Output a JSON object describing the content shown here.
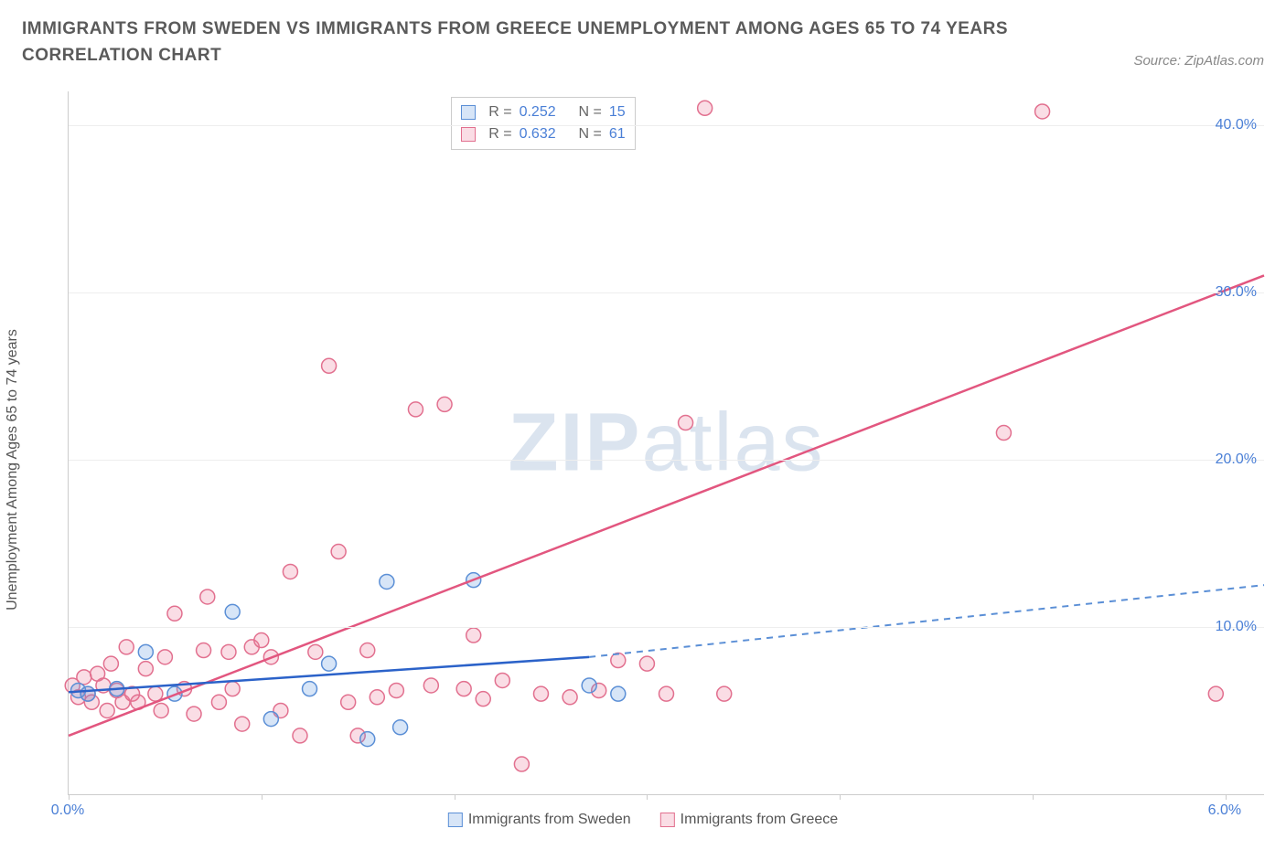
{
  "header": {
    "title": "IMMIGRANTS FROM SWEDEN VS IMMIGRANTS FROM GREECE UNEMPLOYMENT AMONG AGES 65 TO 74 YEARS CORRELATION CHART",
    "source": "Source: ZipAtlas.com"
  },
  "chart": {
    "type": "scatter",
    "ylabel": "Unemployment Among Ages 65 to 74 years",
    "watermark": "ZIPatlas",
    "background_color": "#ffffff",
    "grid_color": "#eeeeee",
    "axis_color": "#cccccc",
    "tick_label_color": "#4a7fd6",
    "ylabel_color": "#555555",
    "xlim": [
      0,
      6.2
    ],
    "ylim": [
      0,
      42
    ],
    "yticks": [
      10,
      20,
      30,
      40
    ],
    "ytick_labels": [
      "10.0%",
      "20.0%",
      "30.0%",
      "40.0%"
    ],
    "xticks_minor": [
      0,
      1,
      2,
      3,
      4,
      5,
      6
    ],
    "xtick_labels": {
      "0": "0.0%",
      "6": "6.0%"
    },
    "marker_radius": 8,
    "marker_stroke_width": 1.5,
    "series": {
      "sweden": {
        "label": "Immigrants from Sweden",
        "color_fill": "rgba(96,150,222,0.25)",
        "color_stroke": "#5b8fd6",
        "points": [
          [
            0.05,
            6.2
          ],
          [
            0.1,
            6.0
          ],
          [
            0.25,
            6.3
          ],
          [
            0.4,
            8.5
          ],
          [
            0.55,
            6.0
          ],
          [
            0.85,
            10.9
          ],
          [
            1.05,
            4.5
          ],
          [
            1.25,
            6.3
          ],
          [
            1.35,
            7.8
          ],
          [
            1.55,
            3.3
          ],
          [
            1.65,
            12.7
          ],
          [
            1.72,
            4.0
          ],
          [
            2.1,
            12.8
          ],
          [
            2.7,
            6.5
          ],
          [
            2.85,
            6.0
          ]
        ],
        "trend": {
          "x1": 0.0,
          "y1": 6.1,
          "x2": 2.7,
          "y2": 8.2,
          "x_extrap": 6.2,
          "y_extrap": 12.5,
          "color": "#2b62c9",
          "dash_color": "#5b8fd6",
          "width": 2.5
        }
      },
      "greece": {
        "label": "Immigrants from Greece",
        "color_fill": "rgba(235,120,150,0.25)",
        "color_stroke": "#e2708f",
        "points": [
          [
            0.02,
            6.5
          ],
          [
            0.05,
            5.8
          ],
          [
            0.08,
            7.0
          ],
          [
            0.1,
            6.0
          ],
          [
            0.12,
            5.5
          ],
          [
            0.15,
            7.2
          ],
          [
            0.18,
            6.5
          ],
          [
            0.2,
            5.0
          ],
          [
            0.22,
            7.8
          ],
          [
            0.25,
            6.2
          ],
          [
            0.28,
            5.5
          ],
          [
            0.3,
            8.8
          ],
          [
            0.33,
            6.0
          ],
          [
            0.36,
            5.5
          ],
          [
            0.4,
            7.5
          ],
          [
            0.45,
            6.0
          ],
          [
            0.48,
            5.0
          ],
          [
            0.5,
            8.2
          ],
          [
            0.55,
            10.8
          ],
          [
            0.6,
            6.3
          ],
          [
            0.65,
            4.8
          ],
          [
            0.7,
            8.6
          ],
          [
            0.72,
            11.8
          ],
          [
            0.78,
            5.5
          ],
          [
            0.83,
            8.5
          ],
          [
            0.85,
            6.3
          ],
          [
            0.9,
            4.2
          ],
          [
            0.95,
            8.8
          ],
          [
            1.0,
            9.2
          ],
          [
            1.05,
            8.2
          ],
          [
            1.1,
            5.0
          ],
          [
            1.15,
            13.3
          ],
          [
            1.2,
            3.5
          ],
          [
            1.28,
            8.5
          ],
          [
            1.35,
            25.6
          ],
          [
            1.4,
            14.5
          ],
          [
            1.45,
            5.5
          ],
          [
            1.5,
            3.5
          ],
          [
            1.55,
            8.6
          ],
          [
            1.6,
            5.8
          ],
          [
            1.7,
            6.2
          ],
          [
            1.8,
            23.0
          ],
          [
            1.88,
            6.5
          ],
          [
            1.95,
            23.3
          ],
          [
            2.05,
            6.3
          ],
          [
            2.1,
            9.5
          ],
          [
            2.15,
            5.7
          ],
          [
            2.25,
            6.8
          ],
          [
            2.35,
            1.8
          ],
          [
            2.45,
            6.0
          ],
          [
            2.6,
            5.8
          ],
          [
            2.75,
            6.2
          ],
          [
            2.85,
            8.0
          ],
          [
            3.0,
            7.8
          ],
          [
            3.1,
            6.0
          ],
          [
            3.2,
            22.2
          ],
          [
            3.3,
            41.0
          ],
          [
            3.4,
            6.0
          ],
          [
            4.85,
            21.6
          ],
          [
            5.05,
            40.8
          ],
          [
            5.95,
            6.0
          ]
        ],
        "trend": {
          "x1": 0.0,
          "y1": 3.5,
          "x2": 6.2,
          "y2": 31.0,
          "color": "#e2567f",
          "width": 2.5
        }
      }
    },
    "stats_box": {
      "rows": [
        {
          "swatch_fill": "rgba(96,150,222,0.25)",
          "swatch_stroke": "#5b8fd6",
          "r": "0.252",
          "n": "15"
        },
        {
          "swatch_fill": "rgba(235,120,150,0.25)",
          "swatch_stroke": "#e2708f",
          "r": "0.632",
          "n": "61"
        }
      ],
      "r_label": "R =",
      "n_label": "N ="
    },
    "bottom_legend": [
      {
        "swatch_fill": "rgba(96,150,222,0.25)",
        "swatch_stroke": "#5b8fd6",
        "label": "Immigrants from Sweden"
      },
      {
        "swatch_fill": "rgba(235,120,150,0.25)",
        "swatch_stroke": "#e2708f",
        "label": "Immigrants from Greece"
      }
    ]
  }
}
